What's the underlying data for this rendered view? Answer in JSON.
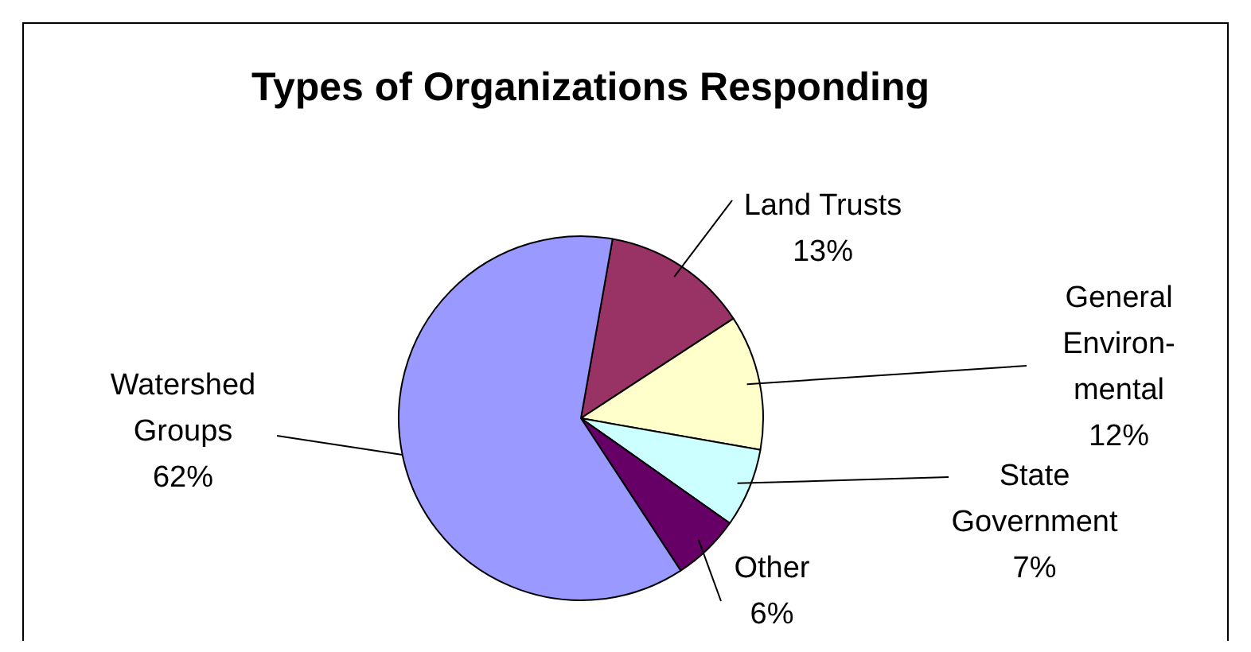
{
  "chart_data": {
    "type": "pie",
    "title": "Types of Organizations Responding",
    "categories": [
      "Land Trusts",
      "General Environ-mental",
      "State Government",
      "Other",
      "Watershed Groups"
    ],
    "values": [
      13,
      12,
      7,
      6,
      62
    ],
    "colors": [
      "#993366",
      "#ffffcc",
      "#ccffff",
      "#660066",
      "#9999ff"
    ],
    "value_labels": [
      "13%",
      "12%",
      "7%",
      "6%",
      "62%"
    ],
    "legend": false
  }
}
